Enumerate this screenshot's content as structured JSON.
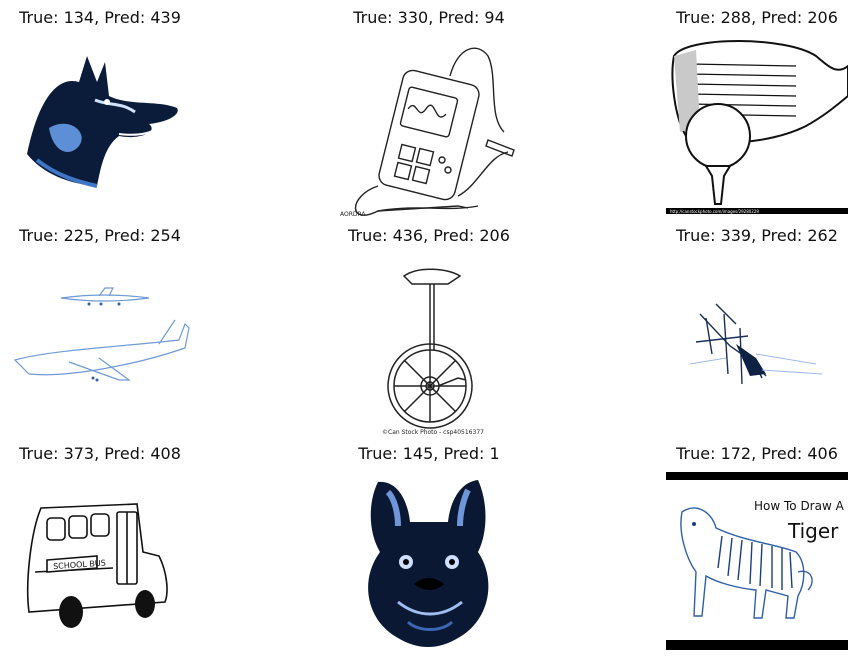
{
  "grid": [
    {
      "caption": "True: 134, Pred: 439",
      "subject": "dog-head-sketch"
    },
    {
      "caption": "True: 330, Pred: 94",
      "subject": "multimeter-drawing",
      "footnote": "AORDRA"
    },
    {
      "caption": "True: 288, Pred: 206",
      "subject": "golf-club-ball-sketch",
      "footnote": "http://canstockphoto.com/images/29280229"
    },
    {
      "caption": "True: 225, Pred: 254",
      "subject": "airplanes-sketch"
    },
    {
      "caption": "True: 436, Pred: 206",
      "subject": "unicycle-drawing",
      "footnote": "©Can Stock Photo - csp40516377"
    },
    {
      "caption": "True: 339, Pred: 262",
      "subject": "abstract-ink-sketch"
    },
    {
      "caption": "True: 373, Pred: 408",
      "subject": "school-bus-drawing",
      "bus_text": "SCHOOL BUS"
    },
    {
      "caption": "True: 145, Pred: 1",
      "subject": "french-bulldog-sketch"
    },
    {
      "caption": "True: 172, Pred: 406",
      "subject": "tiger-drawing",
      "title_line1": "How To Draw A",
      "title_line2": "Tiger"
    }
  ]
}
